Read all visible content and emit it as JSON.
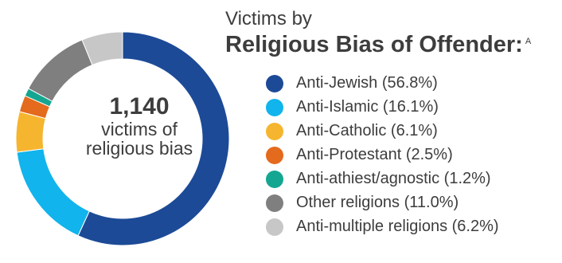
{
  "title": {
    "line1": "Victims by",
    "line2": "Religious Bias of Offender:",
    "footnote": "A"
  },
  "center": {
    "count": "1,140",
    "label_line1": "victims of",
    "label_line2": "religious bias"
  },
  "legend": [
    {
      "label": "Anti-Jewish (56.8%)"
    },
    {
      "label": "Anti-Islamic (16.1%)"
    },
    {
      "label": "Anti-Catholic (6.1%)"
    },
    {
      "label": "Anti-Protestant (2.5%)"
    },
    {
      "label": "Anti-athiest/agnostic (1.2%)"
    },
    {
      "label": "Other religions (11.0%)"
    },
    {
      "label": "Anti-multiple religions (6.2%)"
    }
  ],
  "chart_data": {
    "type": "pie",
    "style": "donut",
    "title": "Religious Bias of Offender",
    "total": 1140,
    "categories": [
      "Anti-Jewish",
      "Anti-Islamic",
      "Anti-Catholic",
      "Anti-Protestant",
      "Anti-athiest/agnostic",
      "Other religions",
      "Anti-multiple religions"
    ],
    "values": [
      56.8,
      16.1,
      6.1,
      2.5,
      1.2,
      11.0,
      6.2
    ],
    "colors": [
      "#1c4a97",
      "#11b4ec",
      "#f6b52f",
      "#e46a1e",
      "#15a692",
      "#7f7f7f",
      "#c7c7c7"
    ],
    "legend_position": "right"
  }
}
